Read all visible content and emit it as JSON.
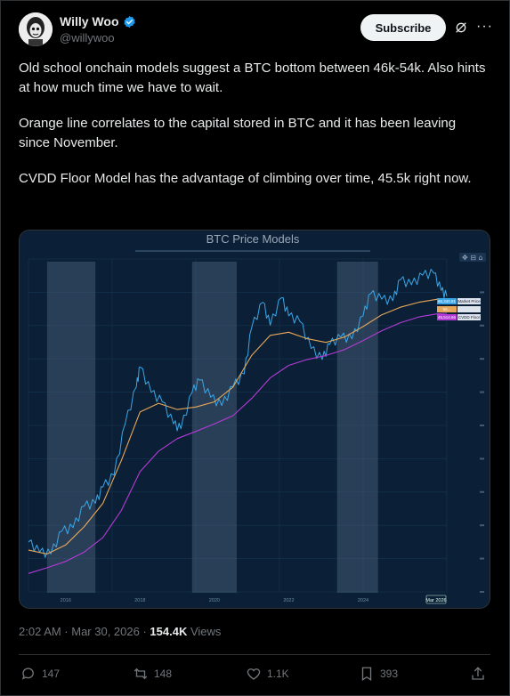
{
  "author": {
    "name": "Willy Woo",
    "handle": "@willywoo"
  },
  "header": {
    "subscribe_label": "Subscribe"
  },
  "tweet": {
    "paragraphs": [
      "Old school onchain models suggest a BTC bottom between 46k-54k. Also hints at how much time we have to wait.",
      "Orange line correlates to the capital stored in BTC and it has been leaving since November.",
      "CVDD Floor Model has the advantage of climbing over time, 45.5k right now."
    ]
  },
  "chart": {
    "title": "BTC Price Models",
    "xaxis_ticks": [
      "2016",
      "2018",
      "2020",
      "2022",
      "2024"
    ],
    "date_badge": "Mar 2026",
    "legend_values": [
      "66,340.81",
      "58,..",
      "45,514.66"
    ],
    "legend_names": [
      "Market Price",
      "",
      "CVDD Floor"
    ]
  },
  "chart_data": {
    "type": "line",
    "title": "BTC Price Models",
    "xlabel": "",
    "ylabel": "",
    "yscale": "log",
    "xlim": [
      2015,
      2026.25
    ],
    "ylim": [
      100,
      150000
    ],
    "grid": true,
    "shaded_bands": [
      [
        2015.5,
        2016.8
      ],
      [
        2019.4,
        2020.6
      ],
      [
        2023.3,
        2024.4
      ]
    ],
    "series": [
      {
        "name": "Market Price",
        "color": "#3aa7e8",
        "x": [
          2015.0,
          2015.3,
          2015.6,
          2015.9,
          2016.2,
          2016.5,
          2016.8,
          2017.0,
          2017.3,
          2017.6,
          2017.9,
          2018.0,
          2018.3,
          2018.6,
          2018.9,
          2019.1,
          2019.4,
          2019.6,
          2019.9,
          2020.2,
          2020.5,
          2020.8,
          2021.0,
          2021.3,
          2021.5,
          2021.8,
          2022.0,
          2022.3,
          2022.6,
          2022.9,
          2023.1,
          2023.4,
          2023.7,
          2024.0,
          2024.2,
          2024.5,
          2024.8,
          2025.0,
          2025.3,
          2025.6,
          2025.9,
          2026.1,
          2026.25
        ],
        "y": [
          300,
          240,
          230,
          380,
          410,
          660,
          700,
          1000,
          1300,
          4000,
          9000,
          14000,
          8000,
          6500,
          4000,
          3600,
          8000,
          10500,
          7200,
          6000,
          9100,
          12000,
          33000,
          58000,
          35000,
          64000,
          43000,
          38000,
          21000,
          16500,
          23000,
          27000,
          26000,
          43000,
          70000,
          62000,
          60000,
          95000,
          85000,
          105000,
          110000,
          75000,
          66340
        ]
      },
      {
        "name": "",
        "color": "#e8a85a",
        "x": [
          2015.0,
          2015.5,
          2016.0,
          2016.5,
          2017.0,
          2017.5,
          2018.0,
          2018.5,
          2019.0,
          2019.5,
          2020.0,
          2020.5,
          2021.0,
          2021.5,
          2022.0,
          2022.5,
          2023.0,
          2023.5,
          2024.0,
          2024.5,
          2025.0,
          2025.5,
          2026.0,
          2026.25
        ],
        "y": [
          250,
          230,
          280,
          420,
          700,
          1800,
          5200,
          6300,
          5500,
          5800,
          6500,
          9000,
          18000,
          28000,
          30000,
          26000,
          24000,
          27000,
          34000,
          44000,
          52000,
          58000,
          62000,
          58000
        ]
      },
      {
        "name": "CVDD Floor",
        "color": "#b43bd6",
        "x": [
          2015.0,
          2015.5,
          2016.0,
          2016.5,
          2017.0,
          2017.5,
          2018.0,
          2018.5,
          2019.0,
          2019.5,
          2020.0,
          2020.5,
          2021.0,
          2021.5,
          2022.0,
          2022.5,
          2023.0,
          2023.5,
          2024.0,
          2024.5,
          2025.0,
          2025.5,
          2026.0,
          2026.25
        ],
        "y": [
          150,
          170,
          195,
          240,
          330,
          600,
          1400,
          2200,
          2900,
          3400,
          4000,
          4800,
          7000,
          11000,
          14500,
          16500,
          18000,
          20500,
          25000,
          31000,
          37000,
          42000,
          45000,
          45514
        ]
      }
    ]
  }
}
